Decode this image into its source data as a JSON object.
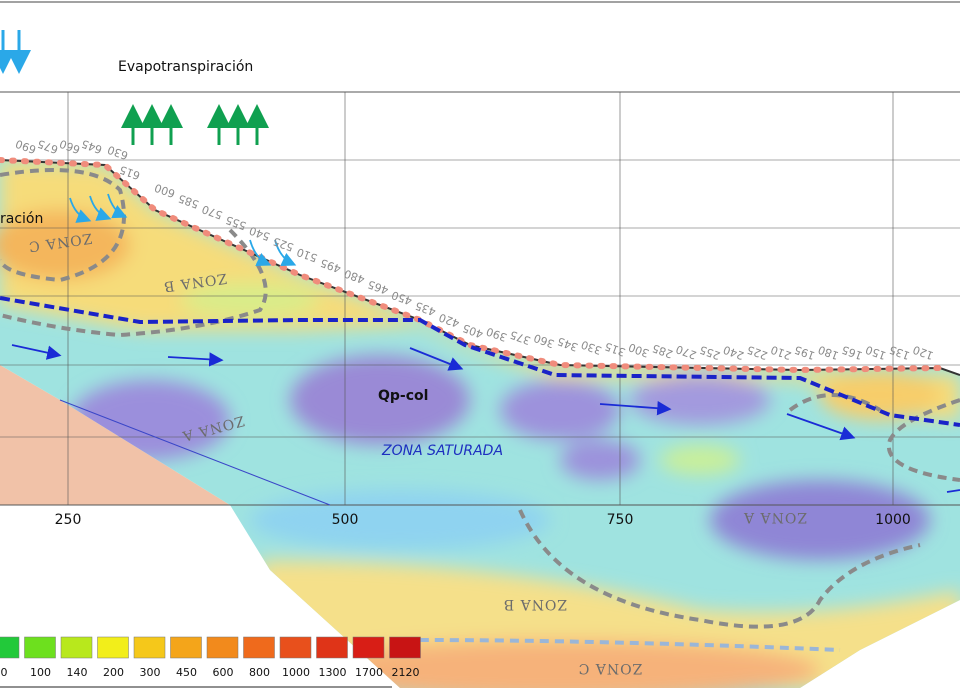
{
  "labels": {
    "evapotranspiration": "Evapotranspiración",
    "infiltration": "ración",
    "unit": "Qp-col",
    "saturated": "ZONA SATURADA"
  },
  "zones": [
    "ZONA C",
    "ZONA B",
    "ZONA A",
    "ZONA A",
    "ZONA B",
    "ZONA C"
  ],
  "x_axis": [
    "250",
    "500",
    "750",
    "1000"
  ],
  "legend": [
    "0",
    "100",
    "140",
    "200",
    "300",
    "450",
    "600",
    "800",
    "1000",
    "1300",
    "1700",
    "2120"
  ],
  "stations": [
    "690",
    "675",
    "660",
    "645",
    "630",
    "615",
    "600",
    "585",
    "570",
    "555",
    "540",
    "525",
    "510",
    "495",
    "480",
    "465",
    "450",
    "435",
    "420",
    "405",
    "390",
    "375",
    "360",
    "345",
    "330",
    "315",
    "300",
    "285",
    "270",
    "255",
    "240",
    "225",
    "210",
    "195",
    "180",
    "165",
    "150",
    "135",
    "120"
  ]
}
